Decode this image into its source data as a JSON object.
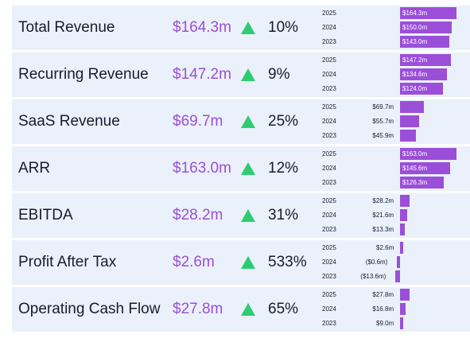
{
  "colors": {
    "accent": "#9b4fd8",
    "up": "#2ecc71",
    "row_bg": "#eaf1fb",
    "text": "#1a1a2e"
  },
  "metrics": [
    {
      "label": "Total Revenue",
      "value": "$164.3m",
      "trend_icon": "up-triangle-icon",
      "change": "10%",
      "history": [
        {
          "year": "2025",
          "amount": 164.3,
          "label": "$164.3m"
        },
        {
          "year": "2024",
          "amount": 150.0,
          "label": "$150.0m"
        },
        {
          "year": "2023",
          "amount": 143.0,
          "label": "$143.0m"
        }
      ]
    },
    {
      "label": "Recurring Revenue",
      "value": "$147.2m",
      "trend_icon": "up-triangle-icon",
      "change": "9%",
      "history": [
        {
          "year": "2025",
          "amount": 147.2,
          "label": "$147.2m"
        },
        {
          "year": "2024",
          "amount": 134.6,
          "label": "$134.6m"
        },
        {
          "year": "2023",
          "amount": 124.0,
          "label": "$124.0m"
        }
      ]
    },
    {
      "label": "SaaS Revenue",
      "value": "$69.7m",
      "trend_icon": "up-triangle-icon",
      "change": "25%",
      "history": [
        {
          "year": "2025",
          "amount": 69.7,
          "label": "$69.7m"
        },
        {
          "year": "2024",
          "amount": 55.7,
          "label": "$55.7m"
        },
        {
          "year": "2023",
          "amount": 45.9,
          "label": "$45.9m"
        }
      ]
    },
    {
      "label": "ARR",
      "value": "$163.0m",
      "trend_icon": "up-triangle-icon",
      "change": "12%",
      "history": [
        {
          "year": "2025",
          "amount": 163.0,
          "label": "$163.0m"
        },
        {
          "year": "2024",
          "amount": 145.6,
          "label": "$145.6m"
        },
        {
          "year": "2023",
          "amount": 126.3,
          "label": "$126.3m"
        }
      ]
    },
    {
      "label": "EBITDA",
      "value": "$28.2m",
      "trend_icon": "up-triangle-icon",
      "change": "31%",
      "history": [
        {
          "year": "2025",
          "amount": 28.2,
          "label": "$28.2m"
        },
        {
          "year": "2024",
          "amount": 21.6,
          "label": "$21.6m"
        },
        {
          "year": "2023",
          "amount": 13.3,
          "label": "$13.3m"
        }
      ]
    },
    {
      "label": "Profit After Tax",
      "value": "$2.6m",
      "trend_icon": "up-triangle-icon",
      "change": "533%",
      "history": [
        {
          "year": "2025",
          "amount": 2.6,
          "label": "$2.6m"
        },
        {
          "year": "2024",
          "amount": -0.6,
          "label": "($0.6m)"
        },
        {
          "year": "2023",
          "amount": -13.6,
          "label": "($13.6m)"
        }
      ]
    },
    {
      "label": "Operating Cash Flow",
      "value": "$27.8m",
      "trend_icon": "up-triangle-icon",
      "change": "65%",
      "history": [
        {
          "year": "2025",
          "amount": 27.8,
          "label": "$27.8m"
        },
        {
          "year": "2024",
          "amount": 16.8,
          "label": "$16.8m"
        },
        {
          "year": "2023",
          "amount": 9.0,
          "label": "$9.0m"
        }
      ]
    }
  ]
}
